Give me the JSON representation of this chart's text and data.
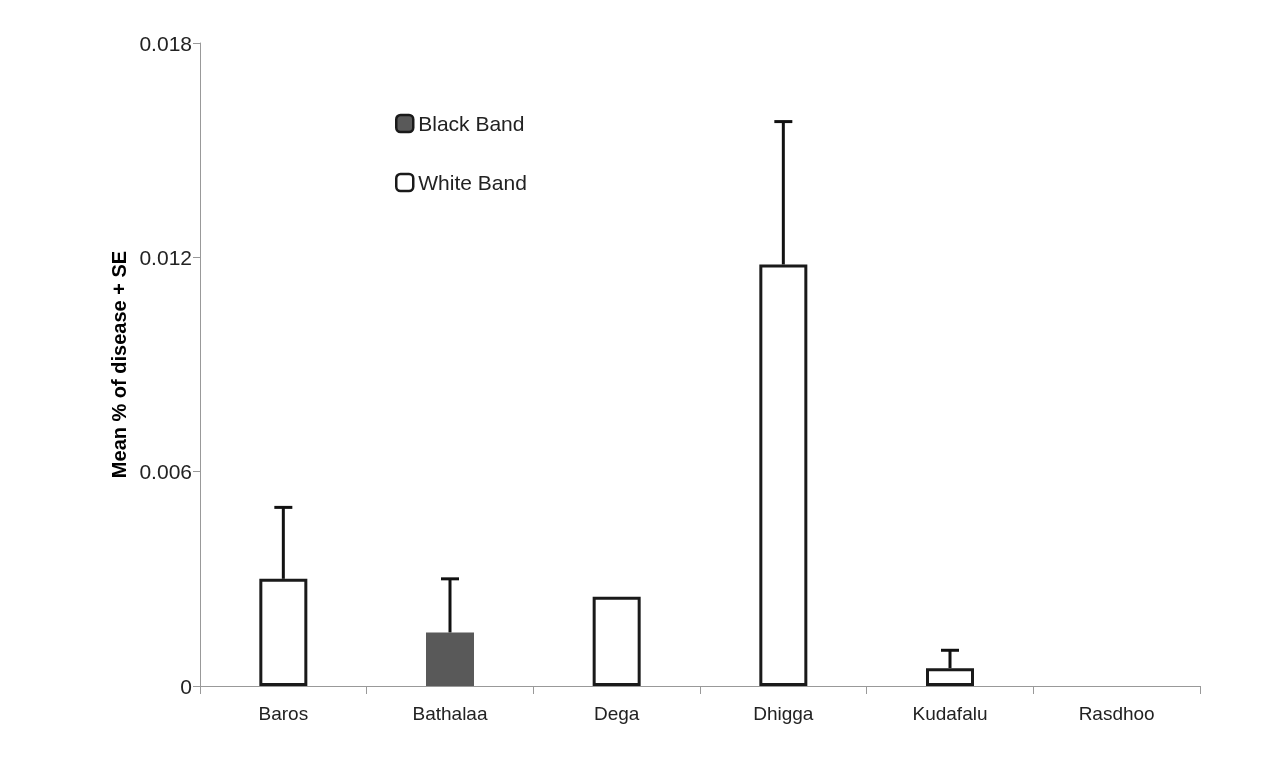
{
  "chart_data": {
    "type": "bar",
    "ylabel": "Mean % of disease + SE",
    "categories": [
      "Baros",
      "Bathalaa",
      "Dega",
      "Dhigga",
      "Kudafalu",
      "Rasdhoo"
    ],
    "series": [
      {
        "name": "Black Band",
        "color": "#595959",
        "values": [
          null,
          0.0015,
          null,
          null,
          null,
          null
        ],
        "errors": [
          null,
          [
            0.0015,
            0.003
          ],
          null,
          null,
          null,
          null
        ]
      },
      {
        "name": "White Band",
        "color": "#ffffff",
        "values": [
          0.003,
          null,
          0.0025,
          0.0118,
          0.0005,
          null
        ],
        "errors": [
          [
            0.003,
            0.005
          ],
          null,
          null,
          [
            0.0118,
            0.0158
          ],
          [
            0.0005,
            0.001
          ],
          null
        ]
      }
    ],
    "ylim": [
      0,
      0.018
    ],
    "yticks": [
      0,
      0.006,
      0.012,
      0.018
    ],
    "grid": false,
    "legend": "top left"
  }
}
